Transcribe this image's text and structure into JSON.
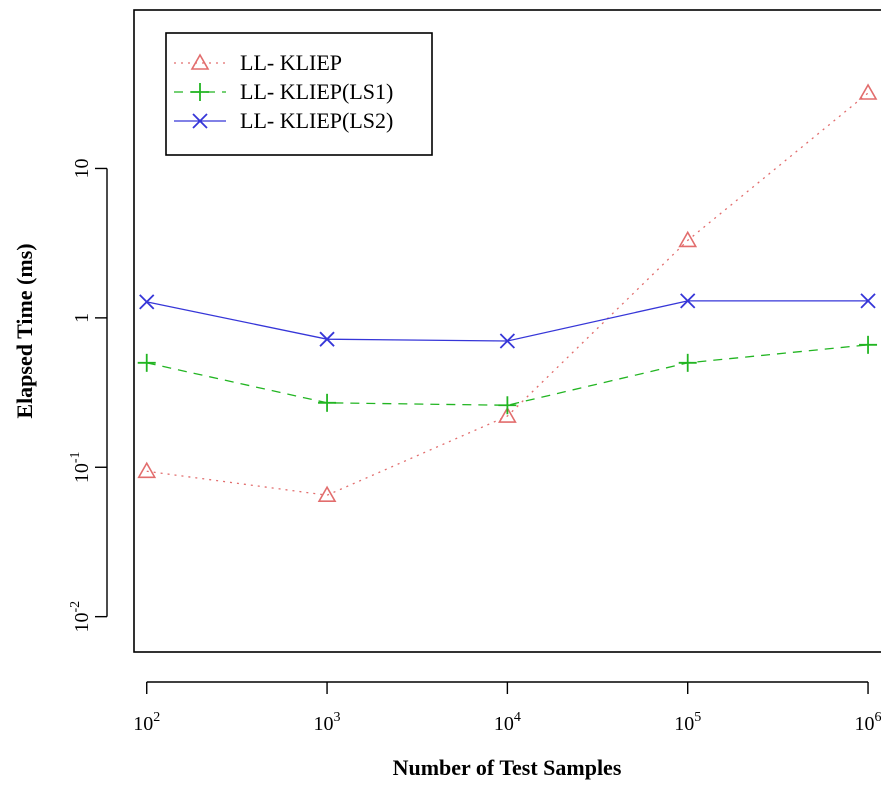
{
  "chart_data": {
    "type": "line",
    "title": "",
    "xlabel": "Number of Test Samples",
    "ylabel": "Elapsed Time (ms)",
    "x_scale": "log",
    "y_scale": "log",
    "x": [
      100,
      1000,
      10000,
      100000,
      1000000
    ],
    "x_tick_labels": [
      {
        "base": "10",
        "exp": "2"
      },
      {
        "base": "10",
        "exp": "3"
      },
      {
        "base": "10",
        "exp": "4"
      },
      {
        "base": "10",
        "exp": "5"
      },
      {
        "base": "10",
        "exp": "6"
      }
    ],
    "y_ticks": [
      0.01,
      0.1,
      1,
      10
    ],
    "y_tick_labels": [
      {
        "base": "10",
        "exp": "-2"
      },
      {
        "base": "10",
        "exp": "-1"
      },
      {
        "base": "1",
        "exp": ""
      },
      {
        "base": "10",
        "exp": ""
      }
    ],
    "xlim": [
      85,
      1180000
    ],
    "ylim": [
      0.0058,
      115
    ],
    "grid": false,
    "legend_position": "top-left",
    "series": [
      {
        "name": "LL- KLIEP",
        "marker": "triangle",
        "line_style": "dotted",
        "color": "#e26d6d",
        "values": [
          0.094,
          0.065,
          0.22,
          3.3,
          32
        ]
      },
      {
        "name": "LL- KLIEP(LS1)",
        "marker": "plus",
        "line_style": "dashed",
        "color": "#22b522",
        "values": [
          0.5,
          0.27,
          0.26,
          0.5,
          0.66
        ]
      },
      {
        "name": "LL- KLIEP(LS2)",
        "marker": "cross",
        "line_style": "solid",
        "color": "#3636d8",
        "values": [
          1.28,
          0.72,
          0.7,
          1.3,
          1.3
        ]
      }
    ]
  }
}
